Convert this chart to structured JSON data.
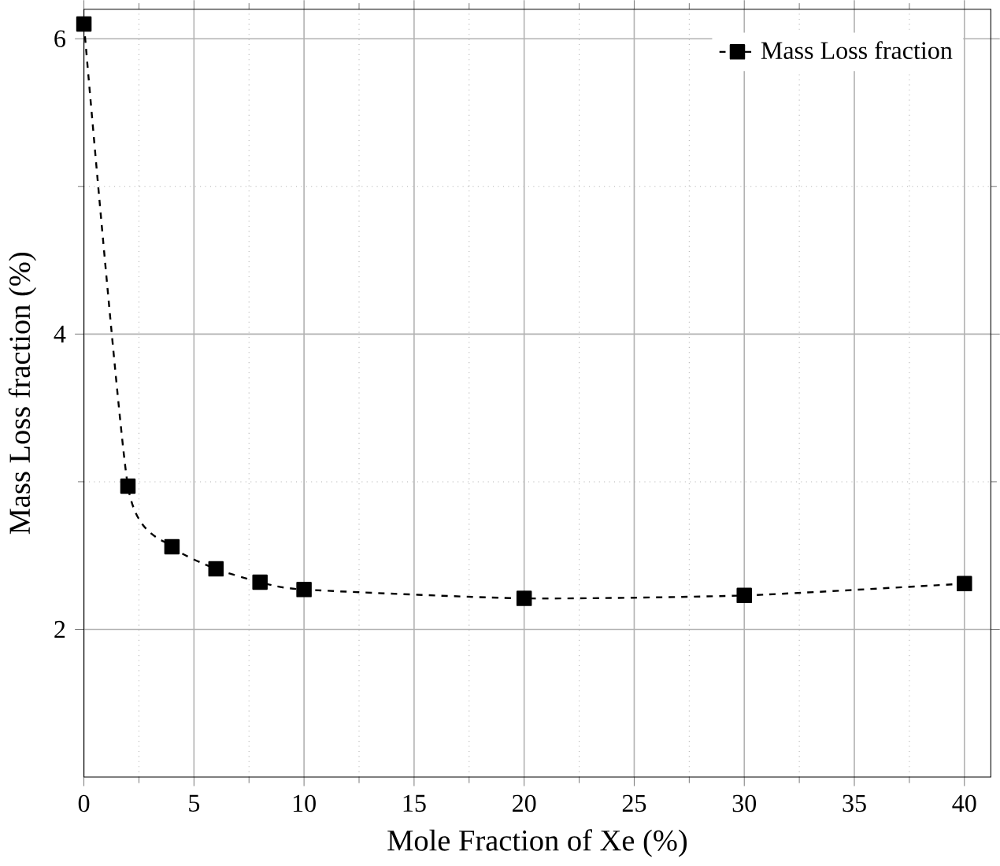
{
  "chart_data": {
    "type": "line",
    "xlabel": "Mole Fraction of Xe (%)",
    "ylabel": "Mass Loss fraction (%)",
    "x": [
      0,
      2,
      4,
      6,
      8,
      10,
      20,
      30,
      40
    ],
    "series": [
      {
        "name": "Mass Loss fraction",
        "color": "#000000",
        "values": [
          6.1,
          2.97,
          2.56,
          2.41,
          2.32,
          2.27,
          2.21,
          2.23,
          2.31
        ]
      }
    ],
    "xlim": [
      0,
      41.2
    ],
    "ylim": [
      1,
      6.2
    ],
    "xticks": [
      0,
      5,
      10,
      15,
      20,
      25,
      30,
      35,
      40
    ],
    "yticks": [
      2,
      4,
      6
    ],
    "grid": true,
    "legend": "top right",
    "marker": "square",
    "line_style": "dashed"
  }
}
